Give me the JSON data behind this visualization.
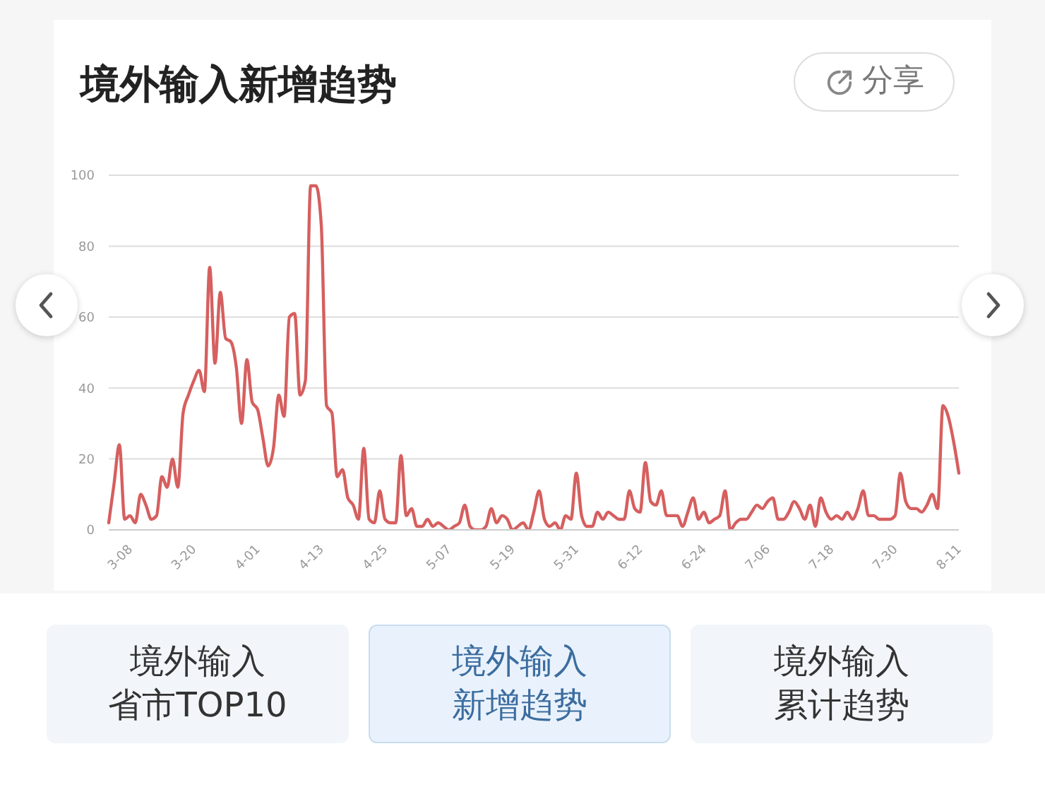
{
  "chart_data": {
    "type": "line",
    "title": "境外输入新增趋势",
    "categories": [
      null,
      null,
      null,
      null,
      "3-08",
      null,
      null,
      null,
      null,
      null,
      null,
      null,
      null,
      null,
      null,
      null,
      "3-20",
      null,
      null,
      null,
      null,
      null,
      null,
      null,
      null,
      null,
      null,
      null,
      "4-01",
      null,
      null,
      null,
      null,
      null,
      null,
      null,
      null,
      null,
      null,
      null,
      "4-13",
      null,
      null,
      null,
      null,
      null,
      null,
      null,
      null,
      null,
      null,
      null,
      "4-25",
      null,
      null,
      null,
      null,
      null,
      null,
      null,
      null,
      null,
      null,
      null,
      "5-07",
      null,
      null,
      null,
      null,
      null,
      null,
      null,
      null,
      null,
      null,
      null,
      "5-19",
      null,
      null,
      null,
      null,
      null,
      null,
      null,
      null,
      null,
      null,
      null,
      "5-31",
      null,
      null,
      null,
      null,
      null,
      null,
      null,
      null,
      null,
      null,
      null,
      "6-12",
      null,
      null,
      null,
      null,
      null,
      null,
      null,
      null,
      null,
      null,
      null,
      "6-24",
      null,
      null,
      null,
      null,
      null,
      null,
      null,
      null,
      null,
      null,
      null,
      "7-06",
      null,
      null,
      null,
      null,
      null,
      null,
      null,
      null,
      null,
      null,
      null,
      "7-18",
      null,
      null,
      null,
      null,
      null,
      null,
      null,
      null,
      null,
      null,
      null,
      "7-30",
      null,
      null,
      null,
      null,
      null,
      null,
      null,
      null,
      null,
      null,
      null,
      "8-11"
    ],
    "values": [
      2,
      13,
      24,
      3,
      4,
      2,
      10,
      7,
      3,
      4,
      15,
      12,
      20,
      12,
      33,
      38,
      42,
      45,
      39,
      74,
      47,
      67,
      54,
      53,
      46,
      30,
      48,
      36,
      34,
      26,
      18,
      23,
      38,
      32,
      60,
      61,
      38,
      42,
      97,
      97,
      86,
      35,
      33,
      15,
      17,
      9,
      7,
      3,
      23,
      3,
      2,
      11,
      3,
      2,
      2,
      21,
      4,
      6,
      1,
      1,
      3,
      1,
      2,
      1,
      0,
      1,
      2,
      7,
      1,
      0,
      0,
      1,
      6,
      2,
      4,
      3,
      0,
      1,
      2,
      0,
      5,
      11,
      3,
      1,
      2,
      0,
      4,
      3,
      16,
      4,
      1,
      1,
      5,
      3,
      5,
      4,
      3,
      3,
      11,
      6,
      5,
      19,
      8,
      7,
      11,
      4,
      4,
      4,
      1,
      5,
      9,
      3,
      5,
      2,
      3,
      4,
      11,
      0,
      2,
      3,
      3,
      5,
      7,
      6,
      8,
      9,
      3,
      3,
      5,
      8,
      6,
      3,
      7,
      1,
      9,
      5,
      3,
      4,
      3,
      5,
      3,
      6,
      11,
      4,
      4,
      3,
      3,
      3,
      4,
      16,
      8,
      6,
      6,
      5,
      7,
      10,
      6,
      35,
      32,
      25,
      16
    ],
    "color": "#d65f5f",
    "ylim": [
      0,
      100
    ],
    "yticks": [
      0,
      20,
      40,
      60,
      80,
      100
    ],
    "grid": "y",
    "annotations": [
      "分享",
      "境外输入省市TOP10",
      "境外输入新增趋势",
      "境外输入累计趋势"
    ]
  }
}
